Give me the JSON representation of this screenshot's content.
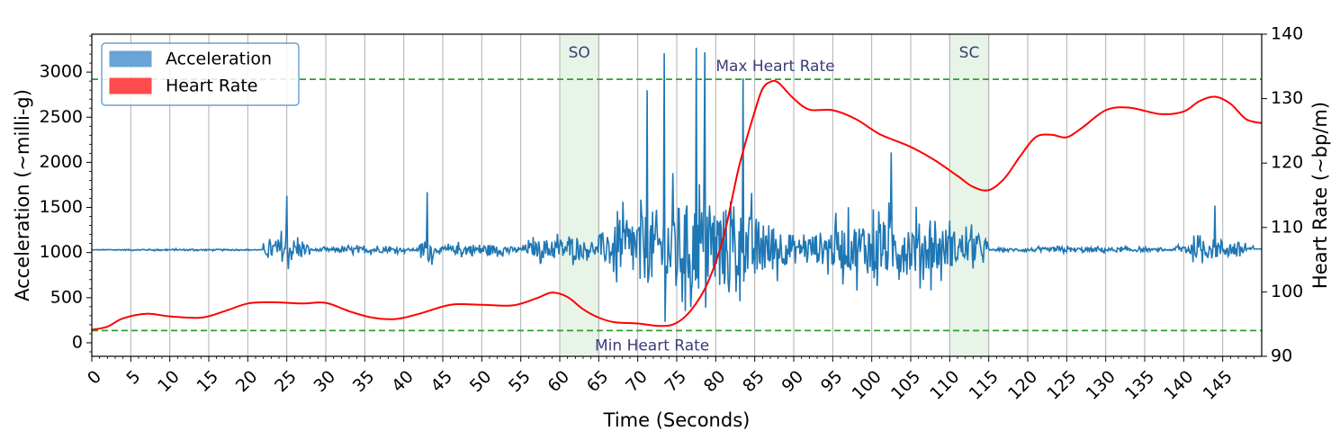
{
  "chart_data": {
    "type": "line",
    "xlabel": "Time (Seconds)",
    "ylabel_left": "Acceleration (~milli-g)",
    "ylabel_right": "Heart Rate (~bp/m)",
    "xlim": [
      0,
      150
    ],
    "ylim_left": [
      -150,
      3420
    ],
    "ylim_right": [
      90,
      140
    ],
    "x_ticks": [
      0,
      5,
      10,
      15,
      20,
      25,
      30,
      35,
      40,
      45,
      50,
      55,
      60,
      65,
      70,
      75,
      80,
      85,
      90,
      95,
      100,
      105,
      110,
      115,
      120,
      125,
      130,
      135,
      140,
      145
    ],
    "y_ticks_left": [
      0,
      500,
      1000,
      1500,
      2000,
      2500,
      3000
    ],
    "y_ticks_right": [
      90,
      100,
      110,
      120,
      130,
      140
    ],
    "grid": "vertical",
    "legend": {
      "placement": "top-left",
      "entries": [
        {
          "label": "Acceleration",
          "color": "#6aa3d5"
        },
        {
          "label": "Heart Rate",
          "color": "#ff4b4b"
        }
      ]
    },
    "shaded_regions": [
      {
        "label": "SO",
        "x_start": 60,
        "x_end": 65,
        "color": "#e8f4e8"
      },
      {
        "label": "SC",
        "x_start": 110,
        "x_end": 115,
        "color": "#e8f4e8"
      }
    ],
    "reference_lines": [
      {
        "label": "Max Heart Rate",
        "axis": "right",
        "value": 133,
        "color": "#2ca02c"
      },
      {
        "label": "Min Heart Rate",
        "axis": "right",
        "value": 94,
        "color": "#2ca02c"
      }
    ],
    "series": [
      {
        "name": "Heart Rate",
        "axis": "right",
        "color": "#ff0000",
        "x": [
          0,
          2,
          4,
          7,
          10,
          14,
          17,
          20,
          23,
          27,
          30,
          33,
          36,
          39,
          42,
          46,
          50,
          54,
          57,
          59,
          61,
          63,
          65,
          67,
          70,
          73,
          75,
          77,
          79,
          81,
          83,
          85,
          86,
          87,
          88,
          90,
          92,
          95,
          98,
          101,
          105,
          108,
          111,
          113,
          115,
          117,
          119,
          121,
          123,
          125,
          127,
          130,
          133,
          137,
          140,
          142,
          144,
          146,
          148,
          150
        ],
        "y": [
          94.1,
          94.6,
          95.9,
          96.6,
          96.2,
          96.0,
          97.0,
          98.2,
          98.4,
          98.2,
          98.3,
          97.0,
          96.0,
          95.8,
          96.6,
          98.0,
          98.0,
          97.9,
          99.0,
          99.9,
          99.2,
          97.3,
          96.0,
          95.3,
          95.1,
          94.7,
          95.2,
          97.4,
          101.5,
          108.5,
          119.5,
          128.0,
          131.5,
          132.6,
          132.5,
          130.0,
          128.3,
          128.2,
          126.8,
          124.5,
          122.5,
          120.5,
          118.0,
          116.3,
          115.8,
          117.6,
          121.0,
          124.0,
          124.4,
          124.0,
          125.5,
          128.2,
          128.6,
          127.6,
          128.0,
          129.6,
          130.3,
          129.2,
          126.8,
          126.2
        ]
      },
      {
        "name": "Acceleration",
        "axis": "left",
        "color": "#1f77b4",
        "segments": [
          {
            "x_start": 0,
            "x_end": 22,
            "base": 1030,
            "amp": 15
          },
          {
            "x_start": 22,
            "x_end": 28,
            "base": 1030,
            "amp": 250,
            "peak": 1630
          },
          {
            "x_start": 28,
            "x_end": 42,
            "base": 1030,
            "amp": 60
          },
          {
            "x_start": 42,
            "x_end": 44,
            "base": 1030,
            "amp": 260,
            "peak": 1670
          },
          {
            "x_start": 44,
            "x_end": 55,
            "base": 1030,
            "amp": 120
          },
          {
            "x_start": 55,
            "x_end": 65,
            "base": 1040,
            "amp": 220
          },
          {
            "x_start": 65,
            "x_end": 90,
            "base": 1050,
            "amp": 900,
            "peak": 3270,
            "min": 200
          },
          {
            "x_start": 90,
            "x_end": 115,
            "base": 1050,
            "amp": 550,
            "peak": 2110,
            "min": 580
          },
          {
            "x_start": 115,
            "x_end": 139,
            "base": 1030,
            "amp": 50
          },
          {
            "x_start": 139,
            "x_end": 149,
            "base": 1040,
            "amp": 200,
            "peak": 1520
          }
        ]
      }
    ]
  }
}
